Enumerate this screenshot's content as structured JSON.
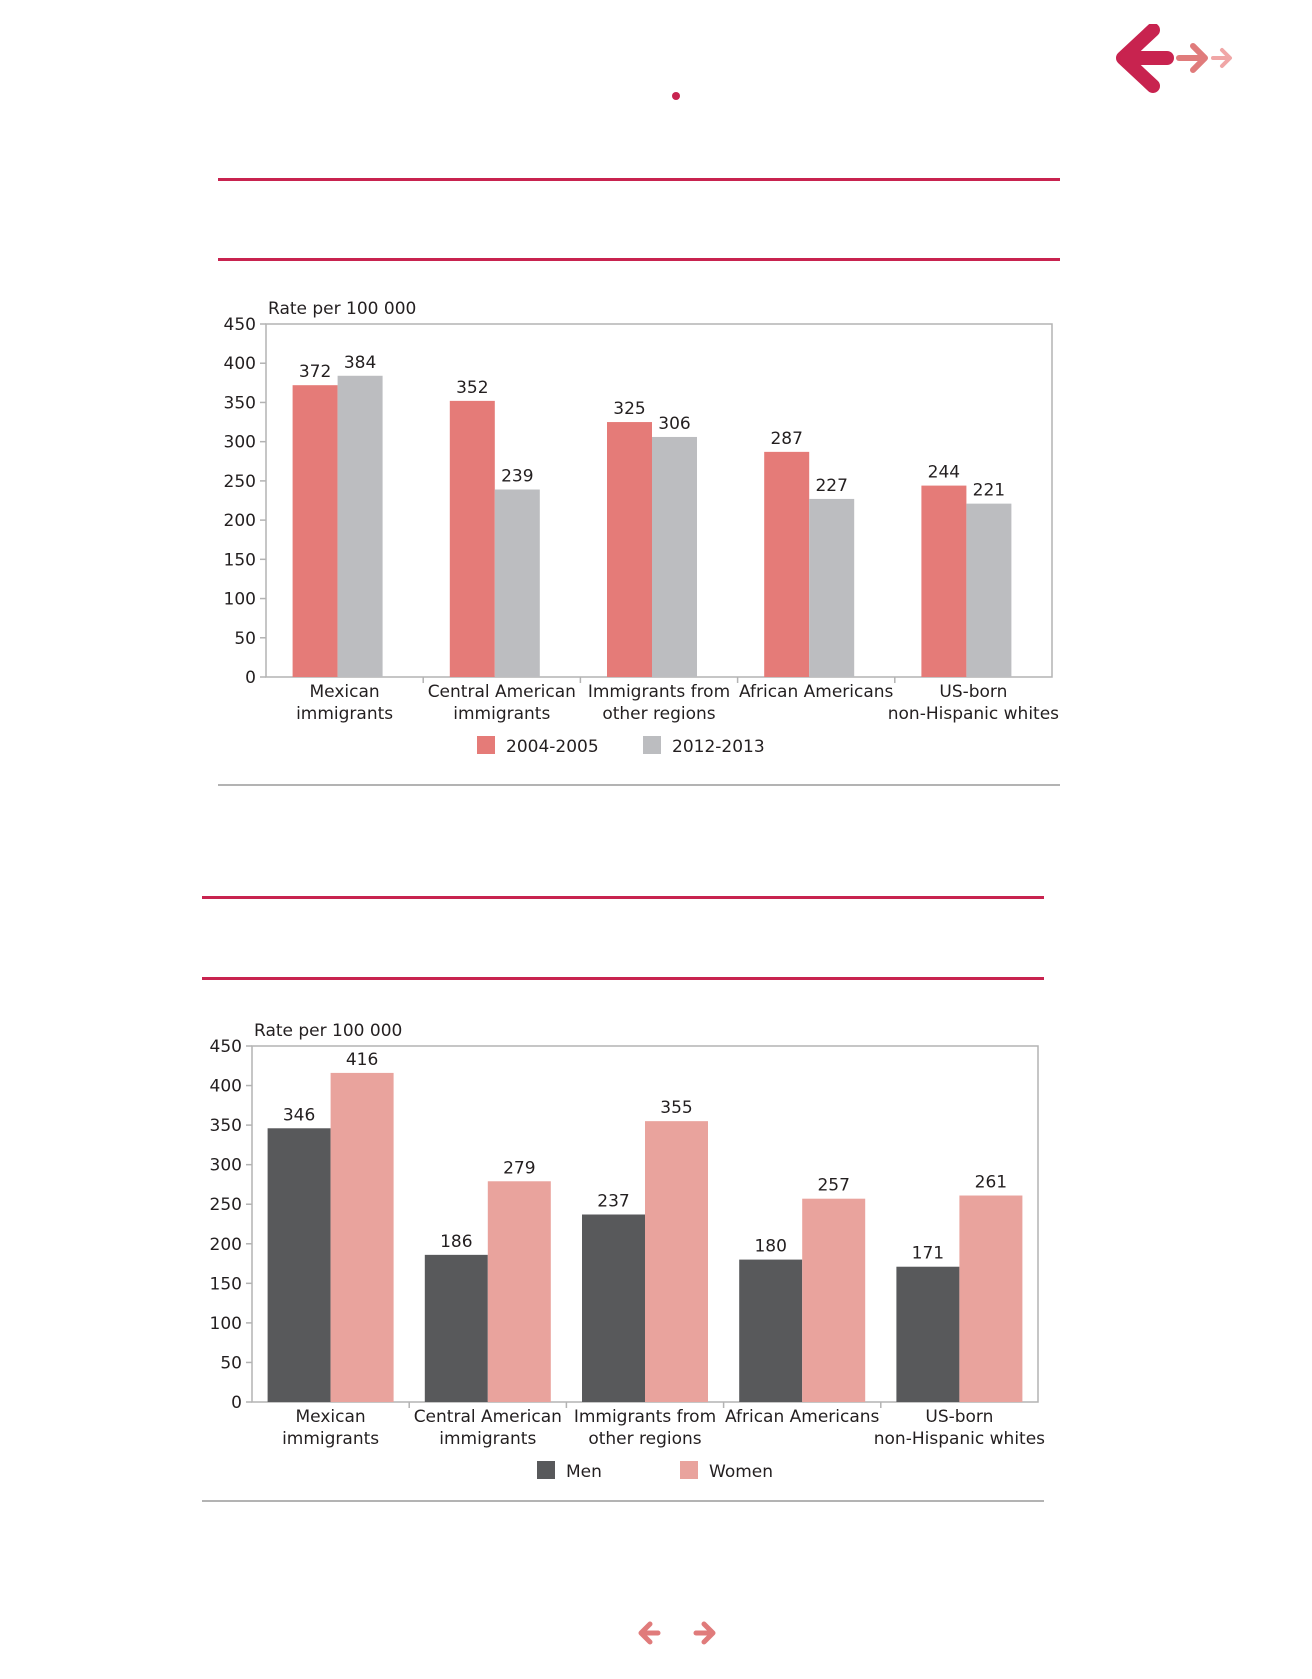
{
  "colors": {
    "accent": "#c8234f",
    "nav_light": "#e07b7b",
    "nav_lighter": "#f0a6a6"
  },
  "icons": {
    "back": "arrow-left-icon",
    "forward": "arrow-right-icon"
  },
  "chart_data": [
    {
      "type": "bar",
      "title": "",
      "xlabel": "",
      "ylabel": "Rate per 100 000",
      "ylim": [
        0,
        450
      ],
      "yticks": [
        0,
        50,
        100,
        150,
        200,
        250,
        300,
        350,
        400,
        450
      ],
      "grid": false,
      "legend_position": "bottom",
      "categories": [
        [
          "Mexican",
          "immigrants"
        ],
        [
          "Central American",
          "immigrants"
        ],
        [
          "Immigrants from",
          "other regions"
        ],
        [
          "African Americans"
        ],
        [
          "US-born",
          "non-Hispanic whites"
        ]
      ],
      "series": [
        {
          "name": "2004-2005",
          "color": "#e57b78",
          "values": [
            372,
            352,
            325,
            287,
            244
          ]
        },
        {
          "name": "2012-2013",
          "color": "#bcbdc0",
          "values": [
            384,
            239,
            306,
            227,
            221
          ]
        }
      ]
    },
    {
      "type": "bar",
      "title": "",
      "xlabel": "",
      "ylabel": "Rate per 100 000",
      "ylim": [
        0,
        450
      ],
      "yticks": [
        0,
        50,
        100,
        150,
        200,
        250,
        300,
        350,
        400,
        450
      ],
      "grid": false,
      "legend_position": "bottom",
      "categories": [
        [
          "Mexican",
          "immigrants"
        ],
        [
          "Central American",
          "immigrants"
        ],
        [
          "Immigrants from",
          "other regions"
        ],
        [
          "African Americans"
        ],
        [
          "US-born",
          "non-Hispanic whites"
        ]
      ],
      "series": [
        {
          "name": "Men",
          "color": "#58595b",
          "values": [
            346,
            186,
            237,
            180,
            171
          ]
        },
        {
          "name": "Women",
          "color": "#e9a39d",
          "values": [
            416,
            279,
            355,
            257,
            261
          ]
        }
      ]
    }
  ]
}
